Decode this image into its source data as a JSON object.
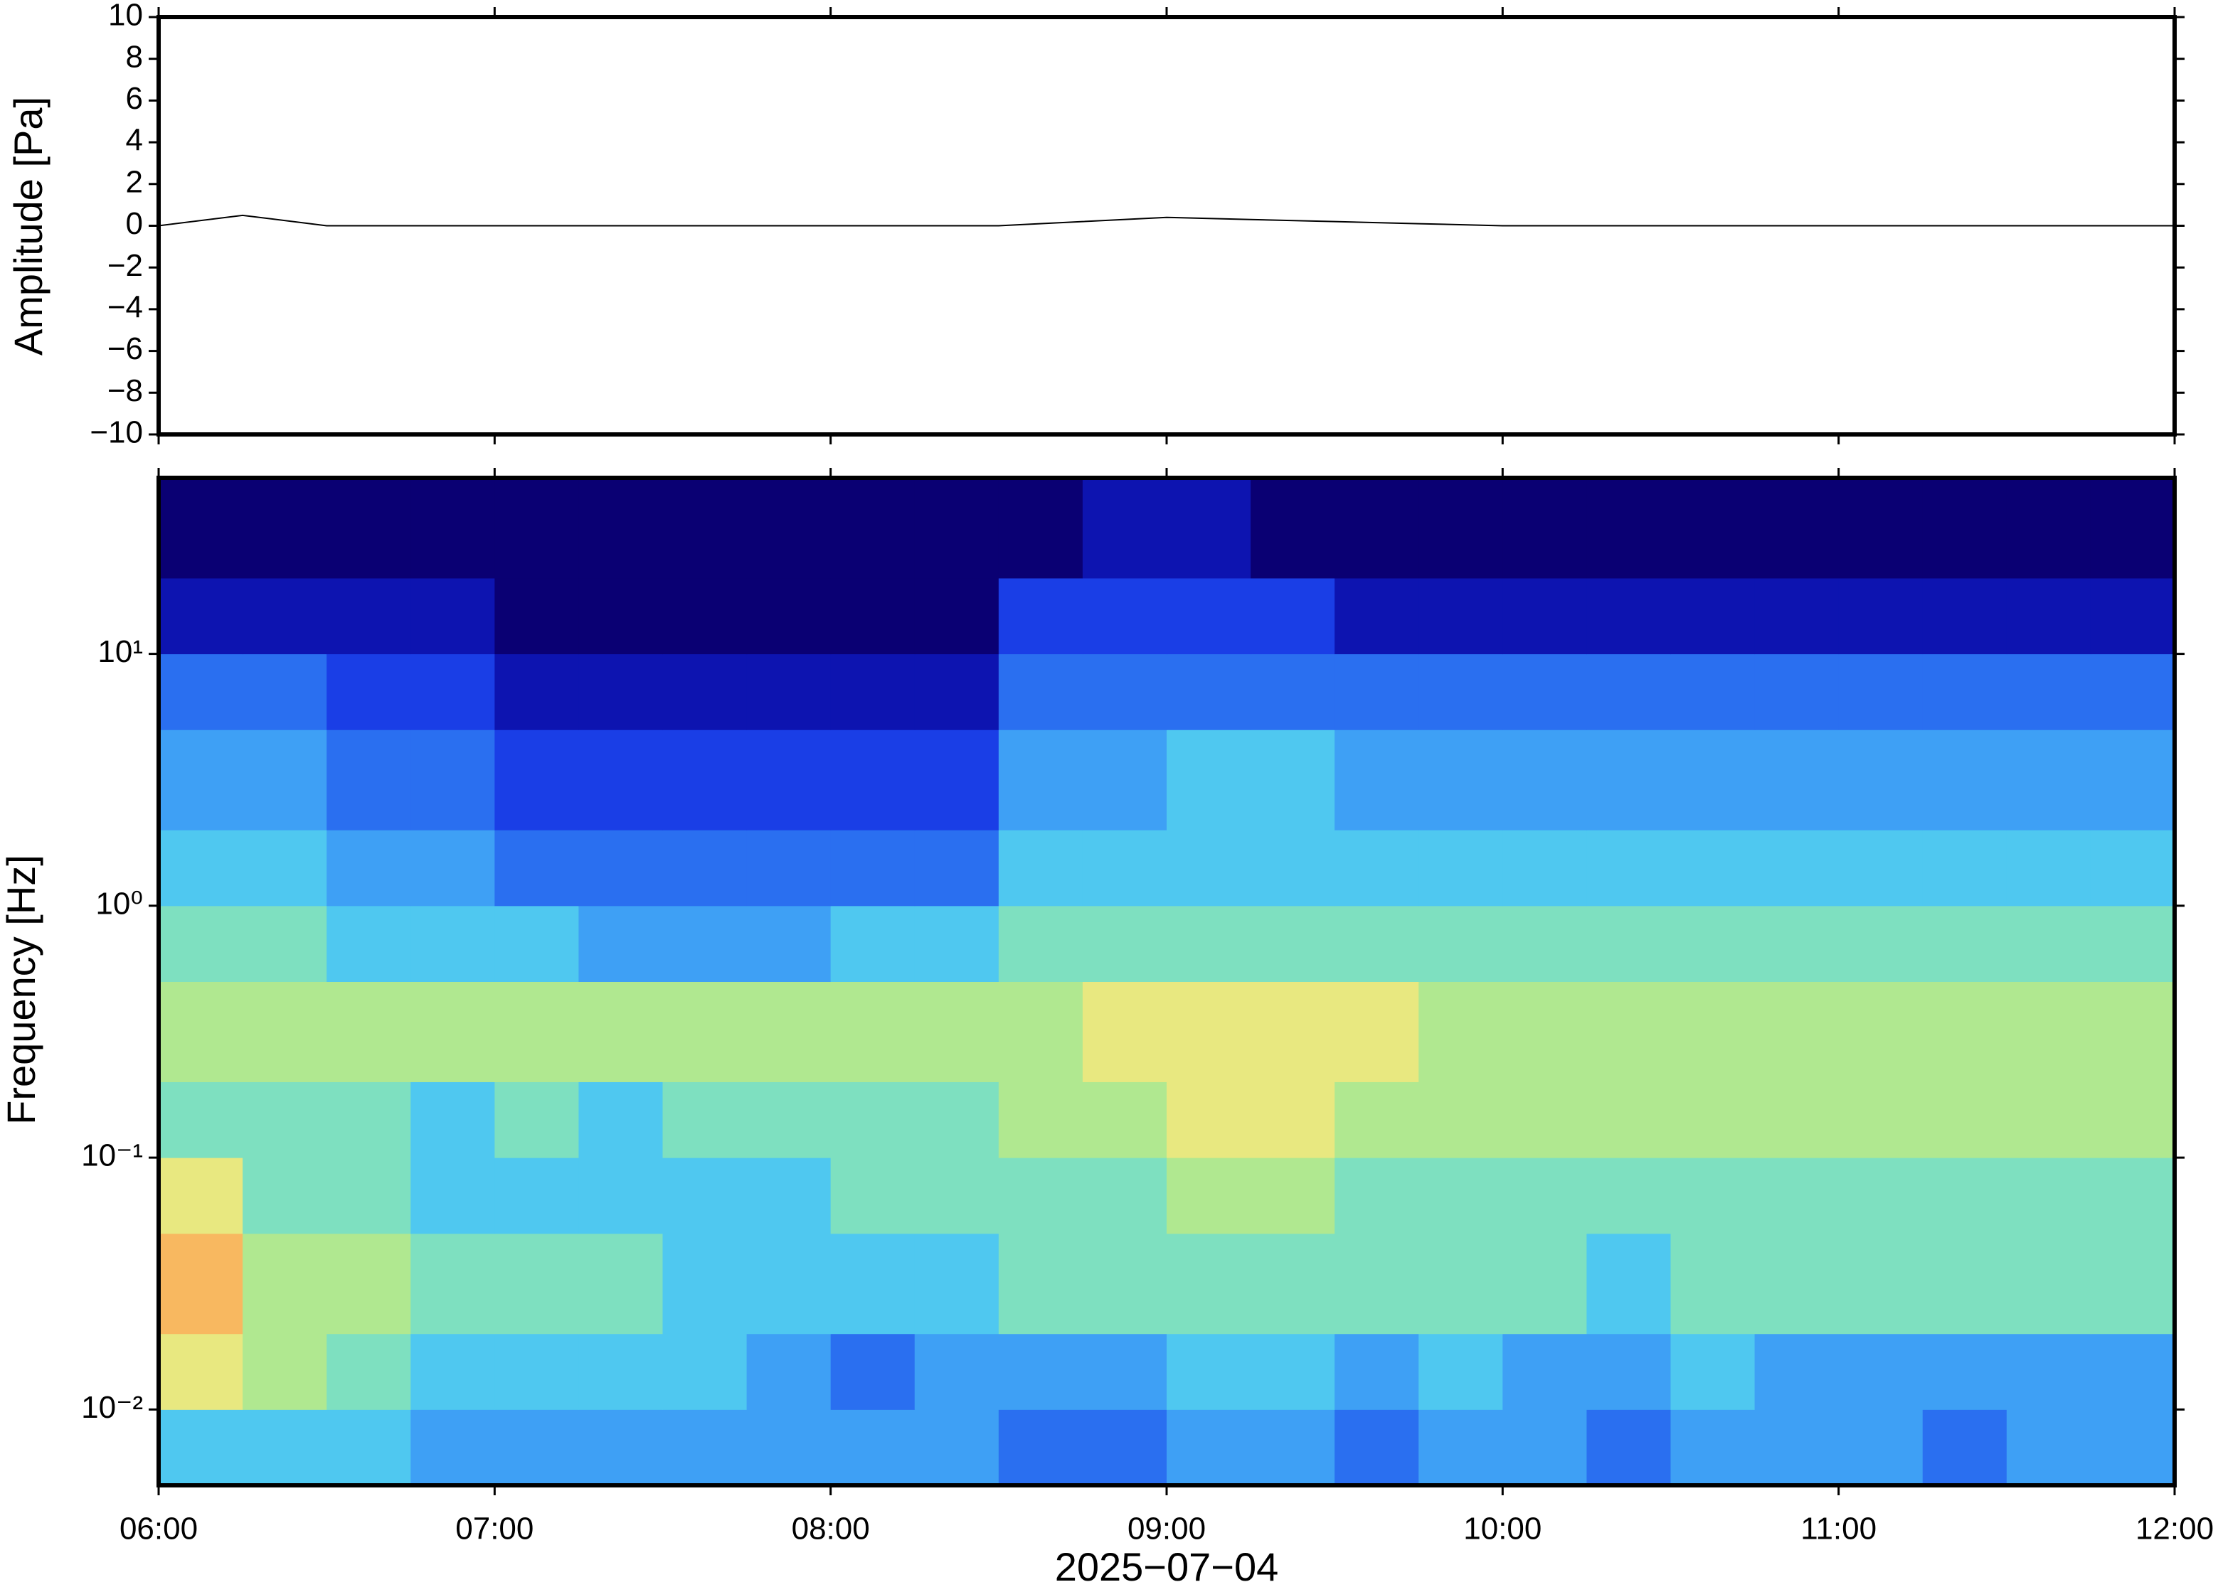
{
  "chart_data": [
    {
      "type": "line",
      "y_label": "Amplitude [Pa]",
      "x": [
        "06:00",
        "06:15",
        "06:30",
        "06:45",
        "07:00",
        "07:15",
        "07:30",
        "07:45",
        "08:00",
        "08:15",
        "08:30",
        "08:45",
        "09:00",
        "09:15",
        "09:30",
        "09:45",
        "10:00",
        "10:15",
        "10:30",
        "10:45",
        "11:00",
        "11:15",
        "11:30",
        "11:45",
        "12:00"
      ],
      "values": [
        0,
        0.5,
        0,
        0,
        0,
        0,
        0,
        0,
        0,
        0,
        0,
        0.2,
        0.4,
        0.3,
        0.2,
        0.1,
        0,
        0,
        0,
        0,
        0,
        0,
        0,
        0,
        0
      ],
      "color": "#000000",
      "xlim": [
        "06:00",
        "12:00"
      ],
      "xticks": [
        "06:00",
        "07:00",
        "08:00",
        "09:00",
        "10:00",
        "11:00",
        "12:00"
      ],
      "ylim": [
        -10,
        10
      ],
      "yticks": [
        10,
        8,
        6,
        4,
        2,
        0,
        {
          "value": -2,
          "label": "−2"
        },
        {
          "value": -4,
          "label": "−4"
        },
        {
          "value": -6,
          "label": "−6"
        },
        {
          "value": -8,
          "label": "−8"
        },
        {
          "value": -10,
          "label": "−10"
        }
      ]
    },
    {
      "type": "heatmap",
      "y_label": "Frequency [Hz]",
      "x_label": "2025−07−04",
      "x": [
        "06:00",
        "06:15",
        "06:30",
        "06:45",
        "07:00",
        "07:15",
        "07:30",
        "07:45",
        "08:00",
        "08:15",
        "08:30",
        "08:45",
        "09:00",
        "09:15",
        "09:30",
        "09:45",
        "10:00",
        "10:15",
        "10:30",
        "10:45",
        "11:00",
        "11:15",
        "11:30",
        "11:45",
        "12:00"
      ],
      "y": [
        0.005,
        0.01,
        0.02,
        0.05,
        0.1,
        0.2,
        0.5,
        1,
        2,
        5,
        10,
        20,
        50
      ],
      "values": [
        [
          5,
          5,
          5,
          4,
          4,
          4,
          4,
          4,
          4,
          4,
          3,
          3,
          4,
          4,
          3,
          4,
          4,
          3,
          4,
          4,
          4,
          3,
          4,
          4
        ],
        [
          8,
          7,
          6,
          5,
          5,
          5,
          5,
          4,
          3,
          4,
          4,
          4,
          5,
          5,
          4,
          5,
          4,
          4,
          5,
          4,
          4,
          4,
          4,
          4
        ],
        [
          9,
          7,
          7,
          6,
          6,
          6,
          5,
          5,
          5,
          5,
          6,
          6,
          6,
          6,
          6,
          6,
          6,
          5,
          6,
          6,
          6,
          6,
          6,
          6
        ],
        [
          8,
          6,
          6,
          5,
          5,
          5,
          5,
          5,
          6,
          6,
          6,
          6,
          7,
          7,
          6,
          6,
          6,
          6,
          6,
          6,
          6,
          6,
          6,
          6
        ],
        [
          6,
          6,
          6,
          5,
          6,
          5,
          6,
          6,
          6,
          6,
          7,
          7,
          8,
          8,
          7,
          7,
          7,
          7,
          7,
          7,
          7,
          7,
          7,
          7
        ],
        [
          7,
          7,
          7,
          7,
          7,
          7,
          7,
          7,
          7,
          7,
          7,
          8,
          8,
          8,
          8,
          7,
          7,
          7,
          7,
          7,
          7,
          7,
          7,
          7
        ],
        [
          6,
          6,
          5,
          5,
          5,
          4,
          4,
          4,
          5,
          5,
          6,
          6,
          6,
          6,
          6,
          6,
          6,
          6,
          6,
          6,
          6,
          6,
          6,
          6
        ],
        [
          5,
          5,
          4,
          4,
          3,
          3,
          3,
          3,
          3,
          3,
          5,
          5,
          5,
          5,
          5,
          5,
          5,
          5,
          5,
          5,
          5,
          5,
          5,
          5
        ],
        [
          4,
          4,
          3,
          3,
          2,
          2,
          2,
          2,
          2,
          2,
          4,
          4,
          5,
          5,
          4,
          4,
          4,
          4,
          4,
          4,
          4,
          4,
          4,
          4
        ],
        [
          3,
          3,
          2,
          2,
          1,
          1,
          1,
          1,
          1,
          1,
          3,
          3,
          3,
          3,
          3,
          3,
          3,
          3,
          3,
          3,
          3,
          3,
          3,
          3
        ],
        [
          1,
          1,
          1,
          1,
          0,
          0,
          0,
          0,
          0,
          0,
          2,
          2,
          2,
          2,
          1,
          1,
          1,
          1,
          1,
          1,
          1,
          1,
          1,
          1
        ],
        [
          0,
          0,
          0,
          0,
          0,
          0,
          0,
          0,
          0,
          0,
          0,
          1,
          1,
          0,
          0,
          0,
          0,
          0,
          0,
          0,
          0,
          0,
          0,
          0
        ]
      ],
      "colorscale": [
        "#0a0073",
        "#0d14b0",
        "#1a3ee6",
        "#2a6ff0",
        "#3ea0f5",
        "#4fc8f0",
        "#7ee0c0",
        "#b0e890",
        "#e8e880",
        "#f8b860",
        "#f88840"
      ],
      "zlim": [
        0,
        10
      ],
      "xlim": [
        "06:00",
        "12:00"
      ],
      "xticks": [
        "06:00",
        "07:00",
        "08:00",
        "09:00",
        "10:00",
        "11:00",
        "12:00"
      ],
      "ylim": [
        0.005,
        50
      ],
      "log_y": true,
      "yticks": [
        {
          "value": 0.01,
          "label": "10⁻²"
        },
        {
          "value": 0.1,
          "label": "10⁻¹"
        },
        {
          "value": 1,
          "label": "10⁰"
        },
        {
          "value": 10,
          "label": "10¹"
        }
      ]
    }
  ]
}
